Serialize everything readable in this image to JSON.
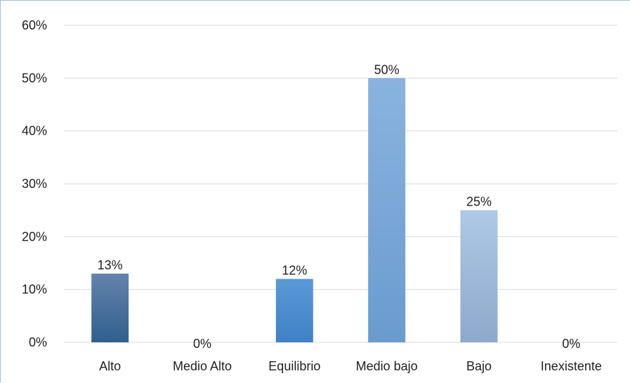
{
  "chart_data": {
    "type": "bar",
    "title": "",
    "xlabel": "",
    "ylabel": "",
    "categories": [
      "Alto",
      "Medio Alto",
      "Equilibrio",
      "Medio bajo",
      "Bajo",
      "Inexistente"
    ],
    "values": [
      0.13,
      0.0,
      0.12,
      0.5,
      0.25,
      0.0
    ],
    "data_labels": [
      "13%",
      "0%",
      "12%",
      "50%",
      "25%",
      "0%"
    ],
    "ylim": [
      0,
      0.6
    ],
    "yticks": [
      0,
      0.1,
      0.2,
      0.3,
      0.4,
      0.5,
      0.6
    ],
    "ytick_labels": [
      "0%",
      "10%",
      "20%",
      "30%",
      "40%",
      "50%",
      "60%"
    ],
    "grid": true,
    "legend": "none",
    "bar_colors": [
      [
        "#6583ac",
        "#2f5f8e"
      ],
      [
        "#6583ac",
        "#2f5f8e"
      ],
      [
        "#5b99d6",
        "#3f81c6"
      ],
      [
        "#8ab3df",
        "#6a9bd0"
      ],
      [
        "#aec8e6",
        "#8fa9cd"
      ],
      [
        "#aec8e6",
        "#8fa9cd"
      ]
    ]
  }
}
